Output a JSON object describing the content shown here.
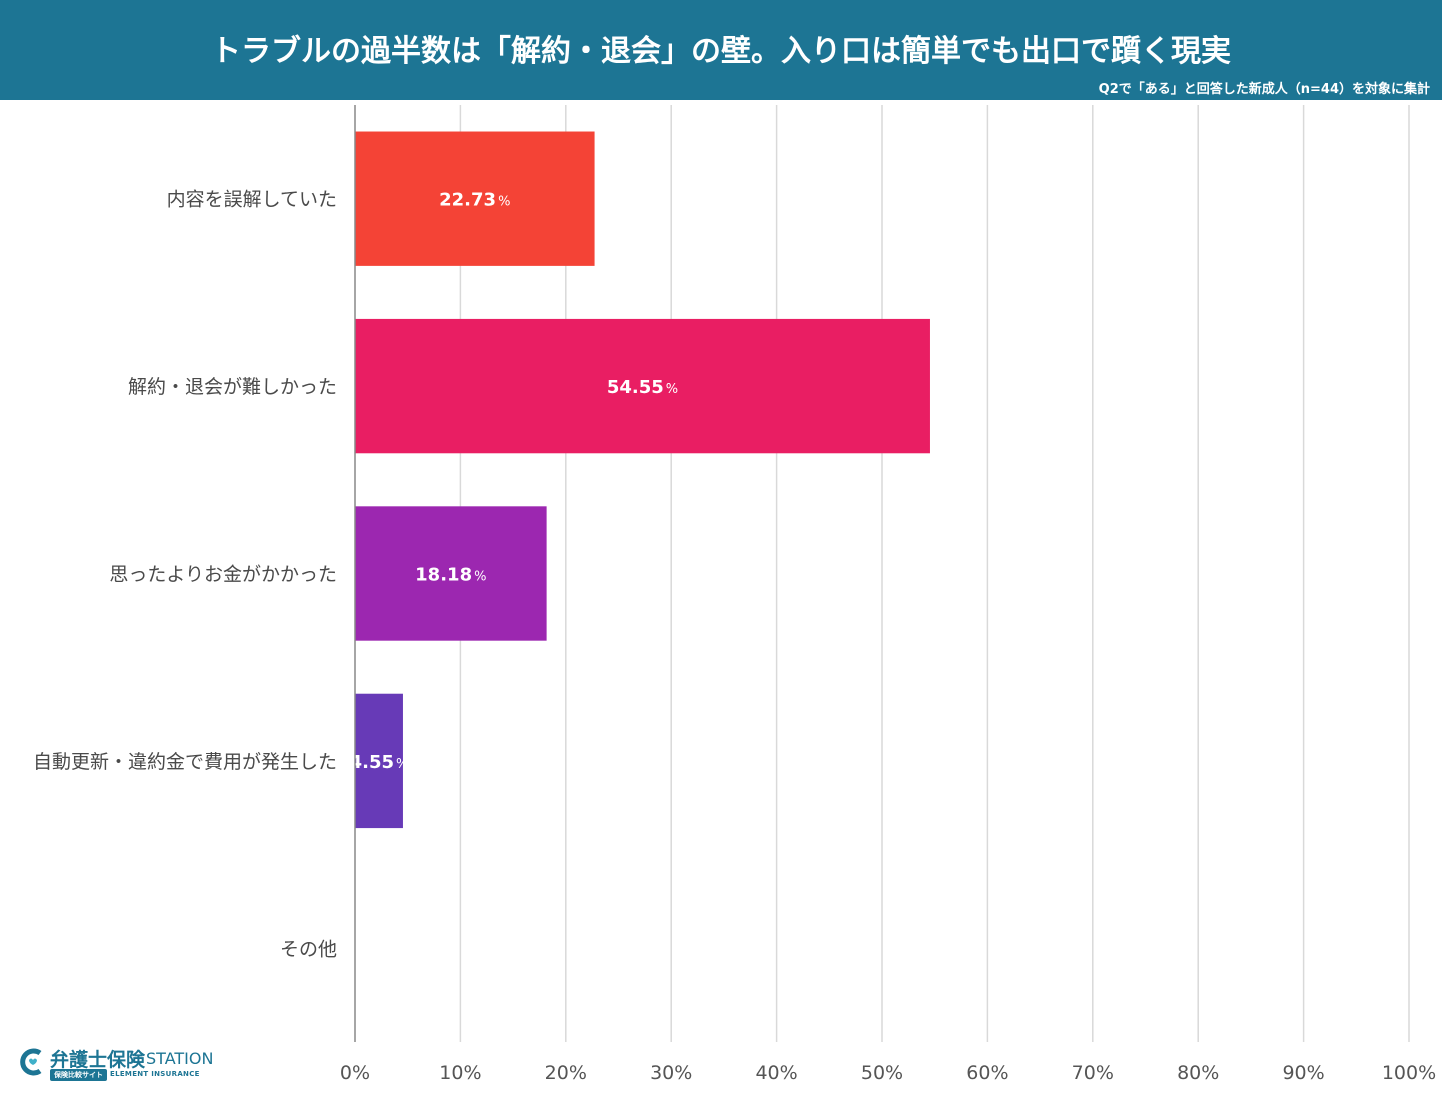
{
  "header": {
    "title": "トラブルの過半数は「解約・退会」の壁。入り口は簡単でも出口で躓く現実",
    "subtitle": "Q2で「ある」と回答した新成人（n=44）を対象に集計"
  },
  "chart_data": {
    "type": "bar",
    "orientation": "horizontal",
    "categories": [
      "内容を誤解していた",
      "解約・退会が難しかった",
      "思ったよりお金がかかった",
      "自動更新・違約金で費用が発生した",
      "その他"
    ],
    "values": [
      22.73,
      54.55,
      18.18,
      4.55,
      0
    ],
    "value_labels": [
      "22.73",
      "54.55",
      "18.18",
      "4.55",
      null
    ],
    "value_unit": "%",
    "colors": [
      "#f44336",
      "#e91e63",
      "#9c27b0",
      "#673ab7",
      "#3f51b5"
    ],
    "xlim": [
      0,
      100
    ],
    "xticks": [
      "0%",
      "10%",
      "20%",
      "30%",
      "40%",
      "50%",
      "60%",
      "70%",
      "80%",
      "90%",
      "100%"
    ],
    "grid": true
  },
  "logo": {
    "name": "弁護士保険",
    "station": "STATION",
    "badge": "保険比較サイト",
    "company": "ELEMENT INSURANCE"
  }
}
